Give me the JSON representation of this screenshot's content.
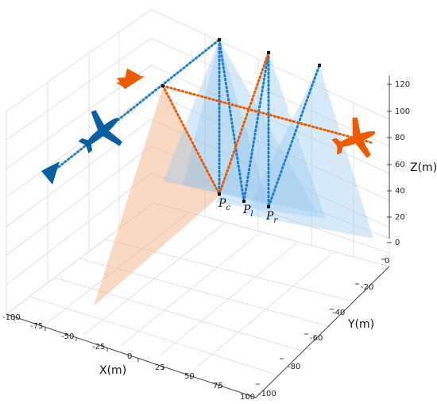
{
  "axes": {
    "x": {
      "label": "X(m)",
      "ticks": [
        "-100",
        "-75",
        "-50",
        "-25",
        "0",
        "25",
        "50",
        "75",
        "100"
      ]
    },
    "y": {
      "label": "Y(m)",
      "ticks": [
        "0",
        "-20",
        "-40",
        "-60",
        "-80",
        "-100"
      ]
    },
    "z": {
      "label": "Z(m)",
      "ticks": [
        "0",
        "20",
        "40",
        "60",
        "80",
        "100",
        "120"
      ]
    }
  },
  "points": [
    {
      "id": "c",
      "base": "P",
      "sub": "c"
    },
    {
      "id": "l",
      "base": "P",
      "sub": "l"
    },
    {
      "id": "r",
      "base": "P",
      "sub": "r"
    }
  ],
  "colors": {
    "blue": "#0a5fa0",
    "blue_dots": "#1d7fd1",
    "orange": "#ee5a00",
    "blue_fill": "#9ccbf0",
    "orange_fill": "#f4b893"
  },
  "icons": {
    "blue_aircraft": "airplane-icon",
    "orange_aircraft": "airplane-icon",
    "blue_emitter": "triangle-icon",
    "orange_emitter": "triangle-icon"
  }
}
